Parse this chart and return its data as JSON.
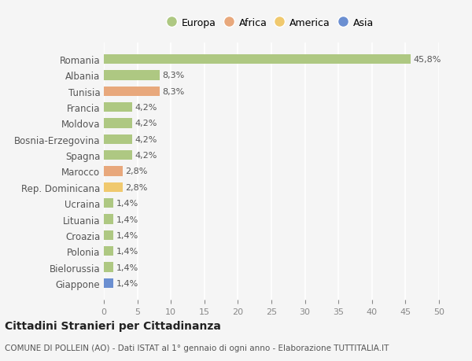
{
  "categories": [
    "Romania",
    "Albania",
    "Tunisia",
    "Francia",
    "Moldova",
    "Bosnia-Erzegovina",
    "Spagna",
    "Marocco",
    "Rep. Dominicana",
    "Ucraina",
    "Lituania",
    "Croazia",
    "Polonia",
    "Bielorussia",
    "Giappone"
  ],
  "values": [
    45.8,
    8.3,
    8.3,
    4.2,
    4.2,
    4.2,
    4.2,
    2.8,
    2.8,
    1.4,
    1.4,
    1.4,
    1.4,
    1.4,
    1.4
  ],
  "colors": [
    "#aec882",
    "#aec882",
    "#e8a87c",
    "#aec882",
    "#aec882",
    "#aec882",
    "#aec882",
    "#e8a87c",
    "#f0c96e",
    "#aec882",
    "#aec882",
    "#aec882",
    "#aec882",
    "#aec882",
    "#6b8fd1"
  ],
  "labels": [
    "45,8%",
    "8,3%",
    "8,3%",
    "4,2%",
    "4,2%",
    "4,2%",
    "4,2%",
    "2,8%",
    "2,8%",
    "1,4%",
    "1,4%",
    "1,4%",
    "1,4%",
    "1,4%",
    "1,4%"
  ],
  "legend_names": [
    "Europa",
    "Africa",
    "America",
    "Asia"
  ],
  "legend_colors": [
    "#aec882",
    "#e8a87c",
    "#f0c96e",
    "#6b8fd1"
  ],
  "xlim": [
    0,
    50
  ],
  "xticks": [
    0,
    5,
    10,
    15,
    20,
    25,
    30,
    35,
    40,
    45,
    50
  ],
  "background_color": "#f5f5f5",
  "grid_color": "#ffffff",
  "title": "Cittadini Stranieri per Cittadinanza",
  "subtitle": "COMUNE DI POLLEIN (AO) - Dati ISTAT al 1° gennaio di ogni anno - Elaborazione TUTTITALIA.IT"
}
